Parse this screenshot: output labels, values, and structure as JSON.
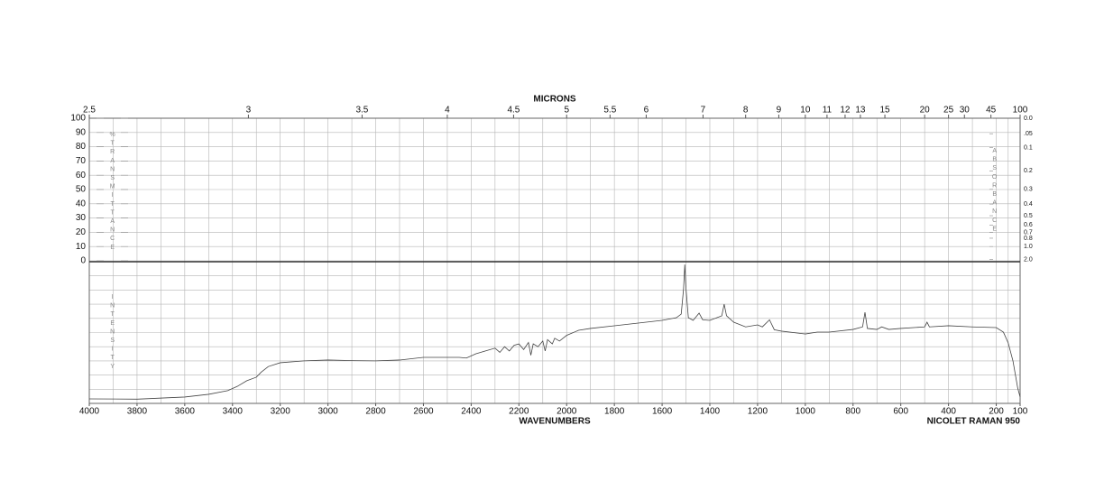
{
  "chart_data": {
    "type": "line",
    "title": "MICRONS",
    "xlabel": "WAVENUMBERS",
    "ylabel": "%TRANSMITTANCE",
    "y2label": "ABSORBANCE",
    "y3label": "INTENSITY",
    "instrument": "NICOLET RAMAN 950",
    "xlim": [
      4000,
      100
    ],
    "xticks": [
      4000,
      3800,
      3600,
      3400,
      3200,
      3000,
      2800,
      2600,
      2400,
      2200,
      2000,
      1800,
      1600,
      1400,
      1200,
      1000,
      800,
      600,
      400,
      200,
      100
    ],
    "micron_ticks": [
      2.5,
      3,
      3.5,
      4,
      4.5,
      5,
      5.5,
      6,
      7,
      8,
      9,
      10,
      11,
      12,
      13,
      15,
      20,
      25,
      30,
      45,
      100
    ],
    "ylim": [
      0,
      100
    ],
    "yticks": [
      0,
      10,
      20,
      30,
      40,
      50,
      60,
      70,
      80,
      90,
      100
    ],
    "y2scale": "absorbance",
    "y2ticks": [
      {
        "value": 0,
        "label": "0.0"
      },
      {
        "value": 0.05,
        "label": ".05"
      },
      0.1,
      0.2,
      0.3,
      0.4,
      0.5,
      0.6,
      0.7,
      0.8,
      {
        "value": 1,
        "label": "1.0"
      },
      {
        "value": 2,
        "label": "2.0"
      }
    ],
    "y3lim": [
      0,
      100
    ],
    "grid": true,
    "series": [
      {
        "color": "#444444",
        "x": [
          4000,
          3800,
          3600,
          3500,
          3420,
          3380,
          3340,
          3300,
          3280,
          3250,
          3200,
          3100,
          3000,
          2900,
          2800,
          2700,
          2600,
          2450,
          2420,
          2380,
          2340,
          2300,
          2280,
          2260,
          2240,
          2220,
          2200,
          2180,
          2160,
          2150,
          2140,
          2120,
          2100,
          2090,
          2080,
          2060,
          2050,
          2030,
          2000,
          1950,
          1900,
          1800,
          1700,
          1600,
          1540,
          1520,
          1510,
          1505,
          1500,
          1490,
          1470,
          1445,
          1430,
          1400,
          1350,
          1340,
          1330,
          1300,
          1250,
          1200,
          1180,
          1150,
          1130,
          1100,
          1000,
          950,
          900,
          800,
          760,
          750,
          740,
          700,
          680,
          650,
          600,
          500,
          490,
          480,
          400,
          300,
          200,
          170,
          150,
          130,
          110,
          100
        ],
        "values": [
          3.2,
          3,
          4.5,
          6.4,
          9,
          12,
          16,
          18.5,
          22,
          26,
          28.7,
          30,
          30.6,
          30.2,
          30,
          30.6,
          32.5,
          32.5,
          32,
          35,
          37,
          39,
          36,
          40,
          37,
          41,
          42,
          38,
          43,
          34,
          42,
          40,
          44,
          37,
          45,
          42,
          46,
          44,
          48,
          51.6,
          52.9,
          54.8,
          56.7,
          58.6,
          60.5,
          63,
          81,
          98,
          81,
          60.5,
          58.6,
          63.7,
          59,
          58.6,
          61.8,
          70,
          61.8,
          57.3,
          54,
          55.4,
          54,
          59,
          52,
          51,
          49,
          50.3,
          50.3,
          52.2,
          54,
          64.3,
          52.9,
          52.2,
          54,
          52.2,
          52.9,
          54,
          57.3,
          54,
          54.8,
          54,
          53.5,
          50.3,
          42.7,
          30,
          10.8,
          4.5
        ]
      }
    ]
  }
}
